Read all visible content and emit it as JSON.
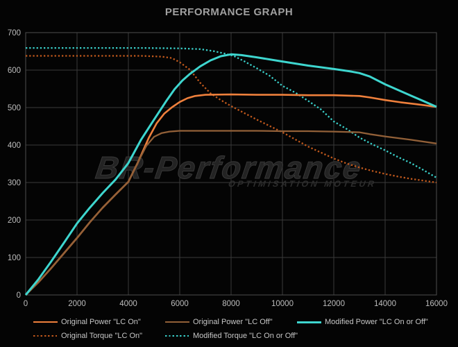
{
  "title": "PERFORMANCE GRAPH",
  "watermark": {
    "brand": "BR-Performance",
    "tagline": "OPTIMISATION MOTEUR"
  },
  "colors": {
    "background": "#040404",
    "grid": "#3a3a3a",
    "plot_border": "#4e4e4e",
    "tick_text": "#bdbdbd",
    "title_text": "#a0a0a0",
    "legend_text": "#c7c7c7",
    "orange": "#ef803c",
    "brown": "#926038",
    "cyan": "#3ed6cf",
    "dark_orange": "#c2591c"
  },
  "chart_data": {
    "type": "line",
    "title": "PERFORMANCE GRAPH",
    "xlabel": "",
    "ylabel": "",
    "xlim": [
      0,
      16000
    ],
    "ylim": [
      0,
      700
    ],
    "x_ticks": [
      0,
      2000,
      4000,
      6000,
      8000,
      10000,
      12000,
      14000,
      16000
    ],
    "y_ticks": [
      0,
      100,
      200,
      300,
      400,
      500,
      600,
      700
    ],
    "grid": true,
    "grid_color": "#3a3a3a",
    "border_color": "#4e4e4e",
    "tick_color": "#bdbdbd",
    "legend_position": "bottom",
    "draw_order": [
      3,
      4,
      0,
      1,
      2
    ],
    "legend_rows": [
      [
        0,
        1,
        2
      ],
      [
        3,
        4
      ]
    ],
    "series": [
      {
        "id": "original-power-lc-on",
        "name": "Original Power \"LC On\"",
        "color": "#ef803c",
        "style": "solid",
        "width": 2.6,
        "points": [
          [
            0,
            0
          ],
          [
            500,
            34
          ],
          [
            1000,
            72
          ],
          [
            1500,
            112
          ],
          [
            2000,
            152
          ],
          [
            2500,
            194
          ],
          [
            3000,
            233
          ],
          [
            3500,
            268
          ],
          [
            4000,
            302
          ],
          [
            4400,
            358
          ],
          [
            4800,
            420
          ],
          [
            5100,
            458
          ],
          [
            5400,
            484
          ],
          [
            5700,
            501
          ],
          [
            6000,
            515
          ],
          [
            6300,
            525
          ],
          [
            6600,
            531
          ],
          [
            7000,
            534
          ],
          [
            8000,
            535
          ],
          [
            9000,
            534
          ],
          [
            10000,
            534
          ],
          [
            11000,
            533
          ],
          [
            12000,
            533
          ],
          [
            13000,
            531
          ],
          [
            13400,
            527
          ],
          [
            14000,
            520
          ],
          [
            14600,
            514
          ],
          [
            15200,
            509
          ],
          [
            16000,
            502
          ]
        ]
      },
      {
        "id": "original-power-lc-off",
        "name": "Original Power \"LC Off\"",
        "color": "#926038",
        "style": "solid",
        "width": 2.3,
        "points": [
          [
            0,
            0
          ],
          [
            500,
            34
          ],
          [
            1000,
            72
          ],
          [
            1500,
            112
          ],
          [
            2000,
            152
          ],
          [
            2500,
            194
          ],
          [
            3000,
            233
          ],
          [
            3500,
            268
          ],
          [
            4000,
            302
          ],
          [
            4400,
            358
          ],
          [
            4700,
            398
          ],
          [
            5000,
            422
          ],
          [
            5300,
            432
          ],
          [
            5600,
            436
          ],
          [
            6000,
            438
          ],
          [
            7000,
            438
          ],
          [
            8000,
            438
          ],
          [
            9000,
            438
          ],
          [
            10000,
            437
          ],
          [
            11000,
            437
          ],
          [
            12000,
            436
          ],
          [
            13000,
            434
          ],
          [
            13400,
            429
          ],
          [
            14000,
            423
          ],
          [
            15000,
            414
          ],
          [
            16000,
            404
          ]
        ]
      },
      {
        "id": "modified-power-lc-on-or-off",
        "name": "Modified Power \"LC On or Off\"",
        "color": "#3ed6cf",
        "style": "solid",
        "width": 3,
        "points": [
          [
            0,
            0
          ],
          [
            500,
            42
          ],
          [
            1000,
            90
          ],
          [
            1500,
            140
          ],
          [
            2000,
            191
          ],
          [
            2500,
            233
          ],
          [
            3000,
            272
          ],
          [
            3500,
            308
          ],
          [
            4000,
            352
          ],
          [
            4500,
            415
          ],
          [
            5000,
            468
          ],
          [
            5500,
            520
          ],
          [
            5800,
            549
          ],
          [
            6100,
            572
          ],
          [
            6400,
            590
          ],
          [
            6800,
            610
          ],
          [
            7200,
            626
          ],
          [
            7600,
            637
          ],
          [
            8000,
            642
          ],
          [
            8400,
            640
          ],
          [
            9000,
            634
          ],
          [
            10000,
            623
          ],
          [
            11000,
            612
          ],
          [
            12000,
            603
          ],
          [
            12600,
            597
          ],
          [
            13000,
            592
          ],
          [
            13400,
            583
          ],
          [
            14000,
            562
          ],
          [
            14500,
            547
          ],
          [
            15000,
            532
          ],
          [
            15500,
            517
          ],
          [
            16000,
            502
          ]
        ]
      },
      {
        "id": "original-torque-lc-on",
        "name": "Original Torque \"LC On\"",
        "color": "#c2591c",
        "style": "dotted",
        "width": 2.3,
        "points": [
          [
            0,
            638
          ],
          [
            1500,
            638
          ],
          [
            3000,
            638
          ],
          [
            4500,
            638
          ],
          [
            5300,
            636
          ],
          [
            5700,
            632
          ],
          [
            6000,
            621
          ],
          [
            6400,
            601
          ],
          [
            6800,
            566
          ],
          [
            7200,
            538
          ],
          [
            7600,
            520
          ],
          [
            8000,
            504
          ],
          [
            8500,
            486
          ],
          [
            9000,
            468
          ],
          [
            9500,
            451
          ],
          [
            10000,
            434
          ],
          [
            10500,
            415
          ],
          [
            11000,
            396
          ],
          [
            11500,
            380
          ],
          [
            12000,
            364
          ],
          [
            12500,
            351
          ],
          [
            13000,
            340
          ],
          [
            13500,
            331
          ],
          [
            14000,
            323
          ],
          [
            14500,
            316
          ],
          [
            15000,
            310
          ],
          [
            15500,
            305
          ],
          [
            16000,
            300
          ]
        ]
      },
      {
        "id": "modified-torque-lc-on-or-off",
        "name": "Modified Torque \"LC On or Off\"",
        "color": "#3ad0ca",
        "style": "dotted",
        "width": 2.3,
        "points": [
          [
            0,
            659
          ],
          [
            1500,
            659
          ],
          [
            3000,
            659
          ],
          [
            4500,
            659
          ],
          [
            6000,
            658
          ],
          [
            6800,
            656
          ],
          [
            7300,
            651
          ],
          [
            7700,
            645
          ],
          [
            8100,
            638
          ],
          [
            8500,
            624
          ],
          [
            9000,
            605
          ],
          [
            9500,
            585
          ],
          [
            10000,
            558
          ],
          [
            10500,
            540
          ],
          [
            11000,
            518
          ],
          [
            11500,
            495
          ],
          [
            12000,
            463
          ],
          [
            12500,
            443
          ],
          [
            13000,
            420
          ],
          [
            13500,
            402
          ],
          [
            14000,
            386
          ],
          [
            14500,
            368
          ],
          [
            15000,
            352
          ],
          [
            15500,
            333
          ],
          [
            16000,
            313
          ]
        ]
      }
    ]
  }
}
